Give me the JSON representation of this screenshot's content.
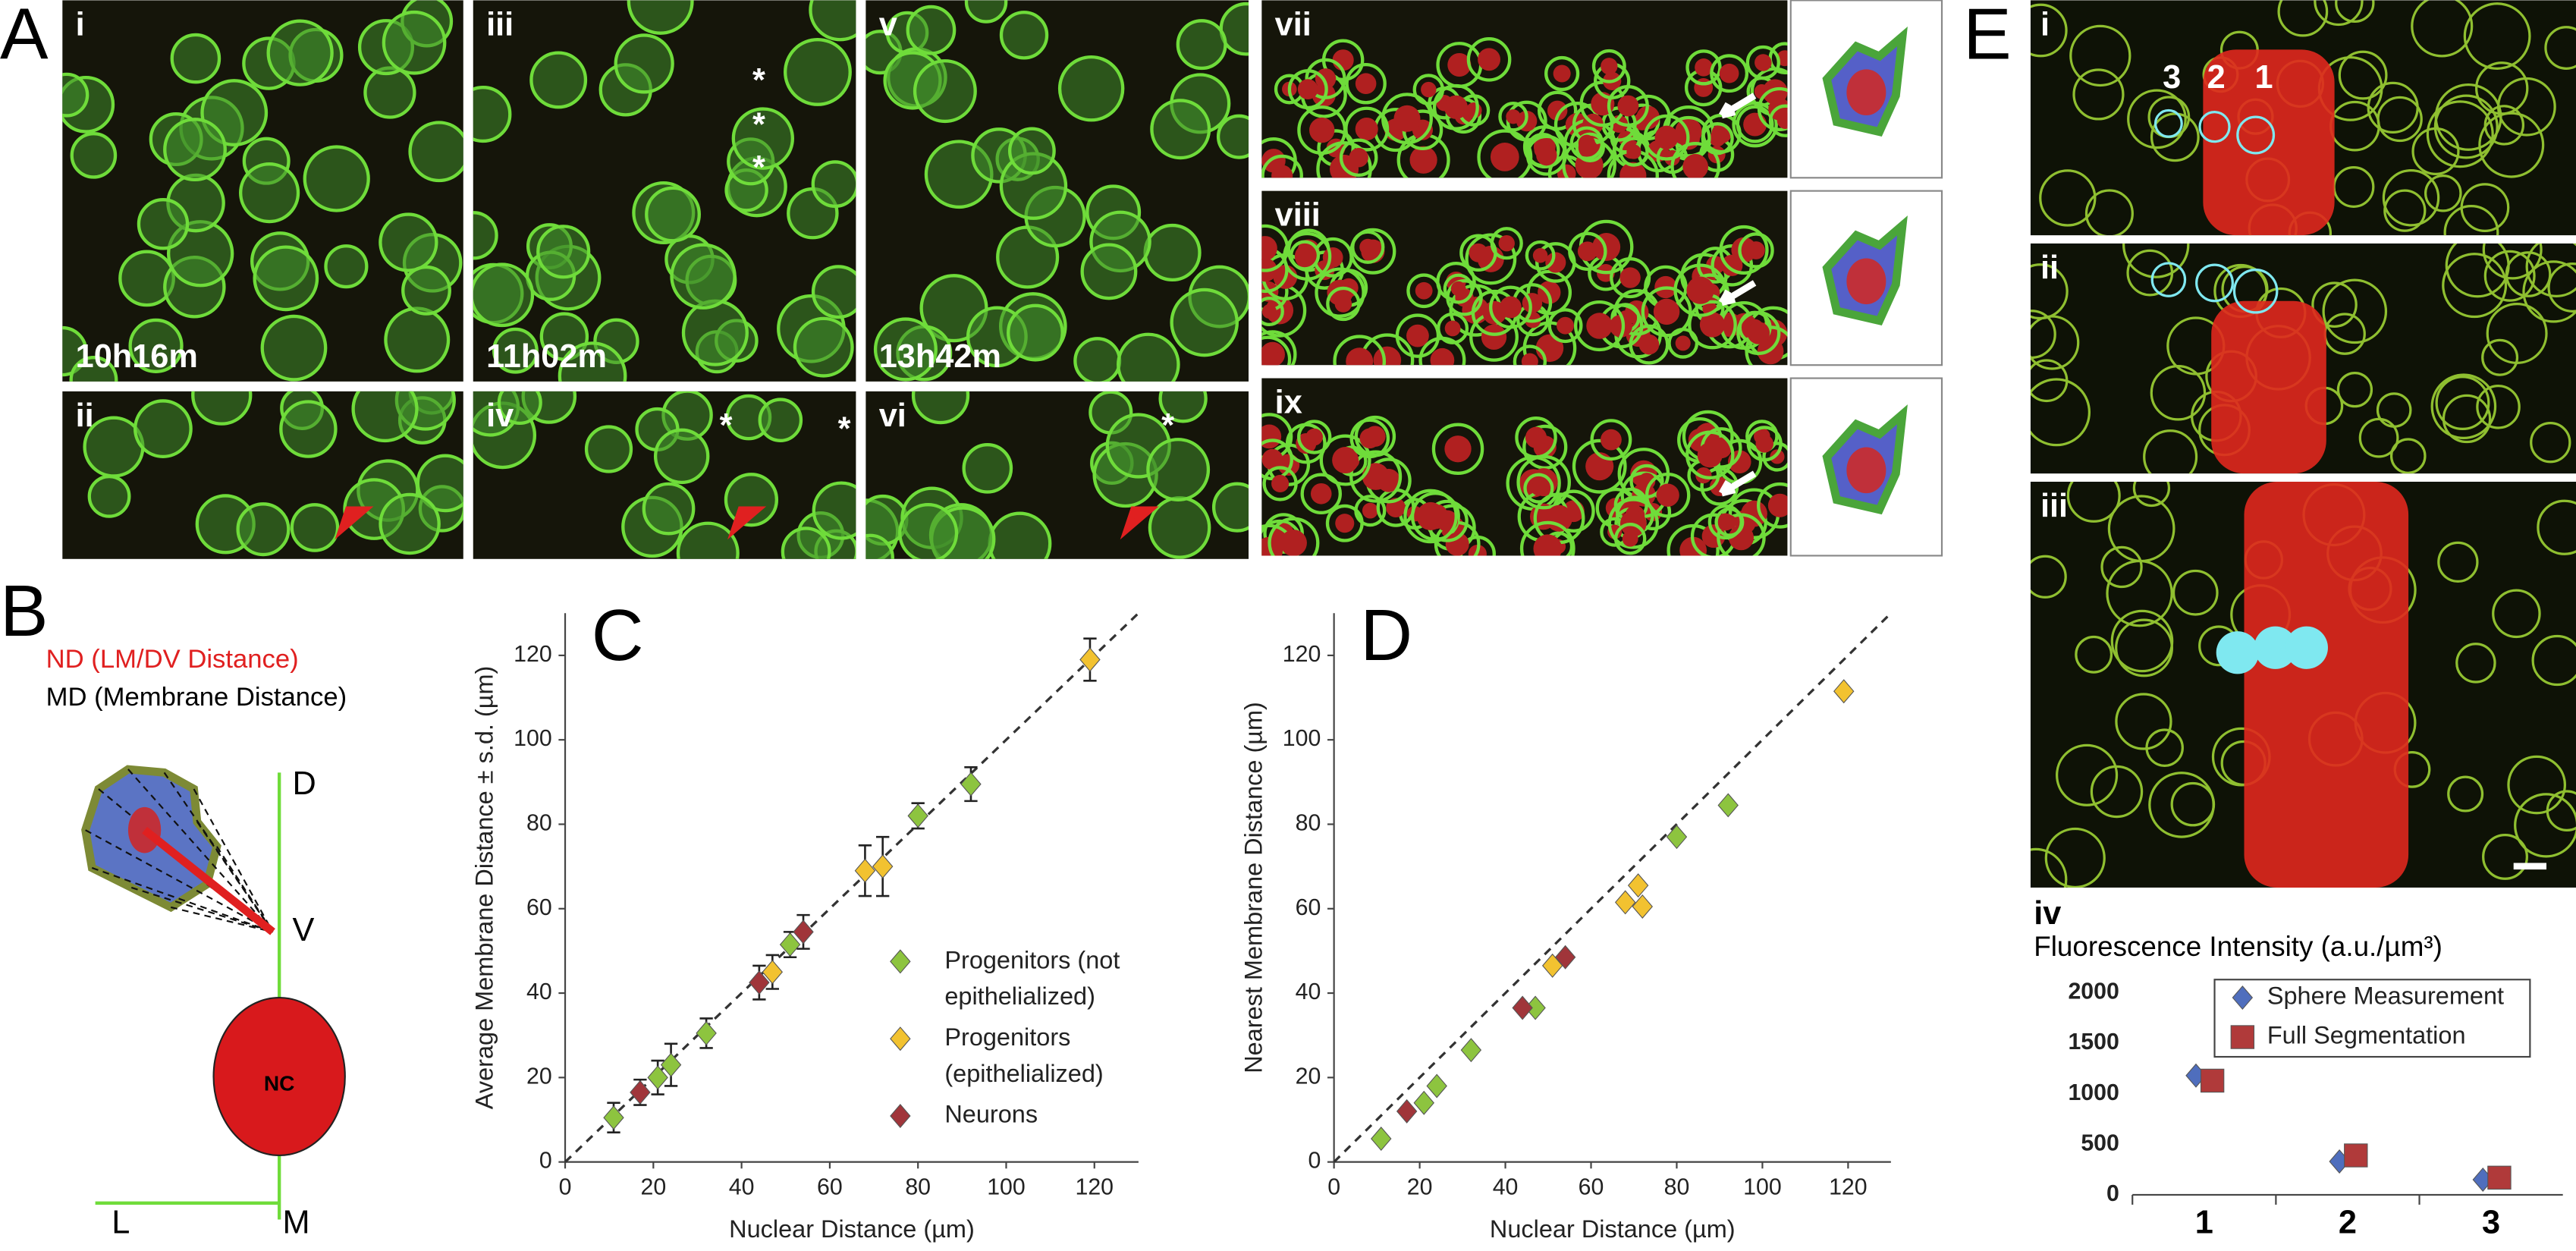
{
  "figure": {
    "A": {
      "label": "A",
      "images": [
        {
          "id": "i",
          "time": "10h16m"
        },
        {
          "id": "iii",
          "time": "11h02m",
          "asterisks": [
            "*",
            "*",
            "*"
          ]
        },
        {
          "id": "v",
          "time": "13h42m"
        },
        {
          "id": "ii"
        },
        {
          "id": "iv",
          "asterisks": [
            "*",
            "*"
          ]
        },
        {
          "id": "vi",
          "asterisks": [
            "*"
          ]
        },
        {
          "id": "vii"
        },
        {
          "id": "viii"
        },
        {
          "id": "ix"
        }
      ]
    },
    "B": {
      "label": "B",
      "nd": "ND (LM/DV Distance)",
      "md": "MD (Membrane Distance)",
      "axis_labels": [
        "D",
        "V",
        "L",
        "M"
      ],
      "nucleus": "NC"
    },
    "E": {
      "label": "E",
      "images": [
        {
          "id": "i",
          "cells": [
            "3",
            "2",
            "1"
          ]
        },
        {
          "id": "ii"
        },
        {
          "id": "iii"
        }
      ],
      "chart_label": "iv"
    }
  },
  "chart_data": [
    {
      "type": "scatter",
      "panel": "C",
      "x_label": "Nuclear Distance (µm)",
      "y_label": "Average Membrane Distance ± s.d. (µm)",
      "xlim": [
        0,
        130
      ],
      "ylim": [
        0,
        130
      ],
      "xticks": [
        0,
        20,
        40,
        60,
        80,
        100,
        120
      ],
      "yticks": [
        0,
        20,
        40,
        60,
        80,
        100,
        120
      ],
      "diagonal": true,
      "legend": "center",
      "series": [
        {
          "name": "Progenitors (not epithelialized)",
          "color": "#8dc43f",
          "marker": "diamond",
          "x": [
            11,
            21,
            24,
            32,
            51,
            80,
            92
          ],
          "values": [
            10.5,
            20,
            23,
            30.5,
            51.5,
            82,
            89.5
          ],
          "errors": [
            3.5,
            4,
            5,
            3.5,
            3,
            3,
            4
          ]
        },
        {
          "name": "Progenitors (epithelialized)",
          "color": "#f2c230",
          "marker": "diamond",
          "x": [
            47,
            68,
            72,
            119
          ],
          "values": [
            45,
            69,
            70,
            119
          ],
          "errors": [
            4,
            6,
            7,
            5
          ]
        },
        {
          "name": "Neurons",
          "color": "#a0353a",
          "marker": "diamond",
          "x": [
            17,
            44,
            54
          ],
          "values": [
            16.5,
            42.5,
            54.5
          ],
          "errors": [
            3,
            4,
            4
          ]
        }
      ]
    },
    {
      "type": "scatter",
      "panel": "D",
      "x_label": "Nuclear Distance (µm)",
      "y_label": "Nearest Membrane Distance (µm)",
      "xlim": [
        0,
        130
      ],
      "ylim": [
        0,
        130
      ],
      "xticks": [
        0,
        20,
        40,
        60,
        80,
        100,
        120
      ],
      "yticks": [
        0,
        20,
        40,
        60,
        80,
        100,
        120
      ],
      "diagonal": true,
      "series": [
        {
          "name": "Progenitors (not epithelialized)",
          "color": "#8dc43f",
          "marker": "diamond",
          "x": [
            11,
            21,
            24,
            32,
            47,
            80,
            92
          ],
          "values": [
            5.5,
            14,
            18,
            26.5,
            36.5,
            77,
            84.5
          ]
        },
        {
          "name": "Progenitors (epithelialized)",
          "color": "#f2c230",
          "marker": "diamond",
          "x": [
            51,
            68,
            71,
            72,
            119
          ],
          "values": [
            46.5,
            61.5,
            65.5,
            60.5,
            111.5
          ]
        },
        {
          "name": "Neurons",
          "color": "#a0353a",
          "marker": "diamond",
          "x": [
            17,
            44,
            54
          ],
          "values": [
            12,
            36.5,
            48.5
          ]
        }
      ]
    },
    {
      "type": "point",
      "title": "Fluorescence Intensity (a.u./µm³)",
      "categories": [
        "1",
        "2",
        "3"
      ],
      "ylim": [
        0,
        2000
      ],
      "yticks": [
        0,
        500,
        1000,
        1500,
        2000
      ],
      "legend": "top-right",
      "series": [
        {
          "name": "Sphere Measurement",
          "color": "#4f6ebd",
          "marker": "diamond",
          "values": [
            1180,
            330,
            150
          ]
        },
        {
          "name": "Full Segmentation",
          "color": "#b03a3a",
          "marker": "square",
          "values": [
            1130,
            390,
            170
          ]
        }
      ]
    }
  ]
}
